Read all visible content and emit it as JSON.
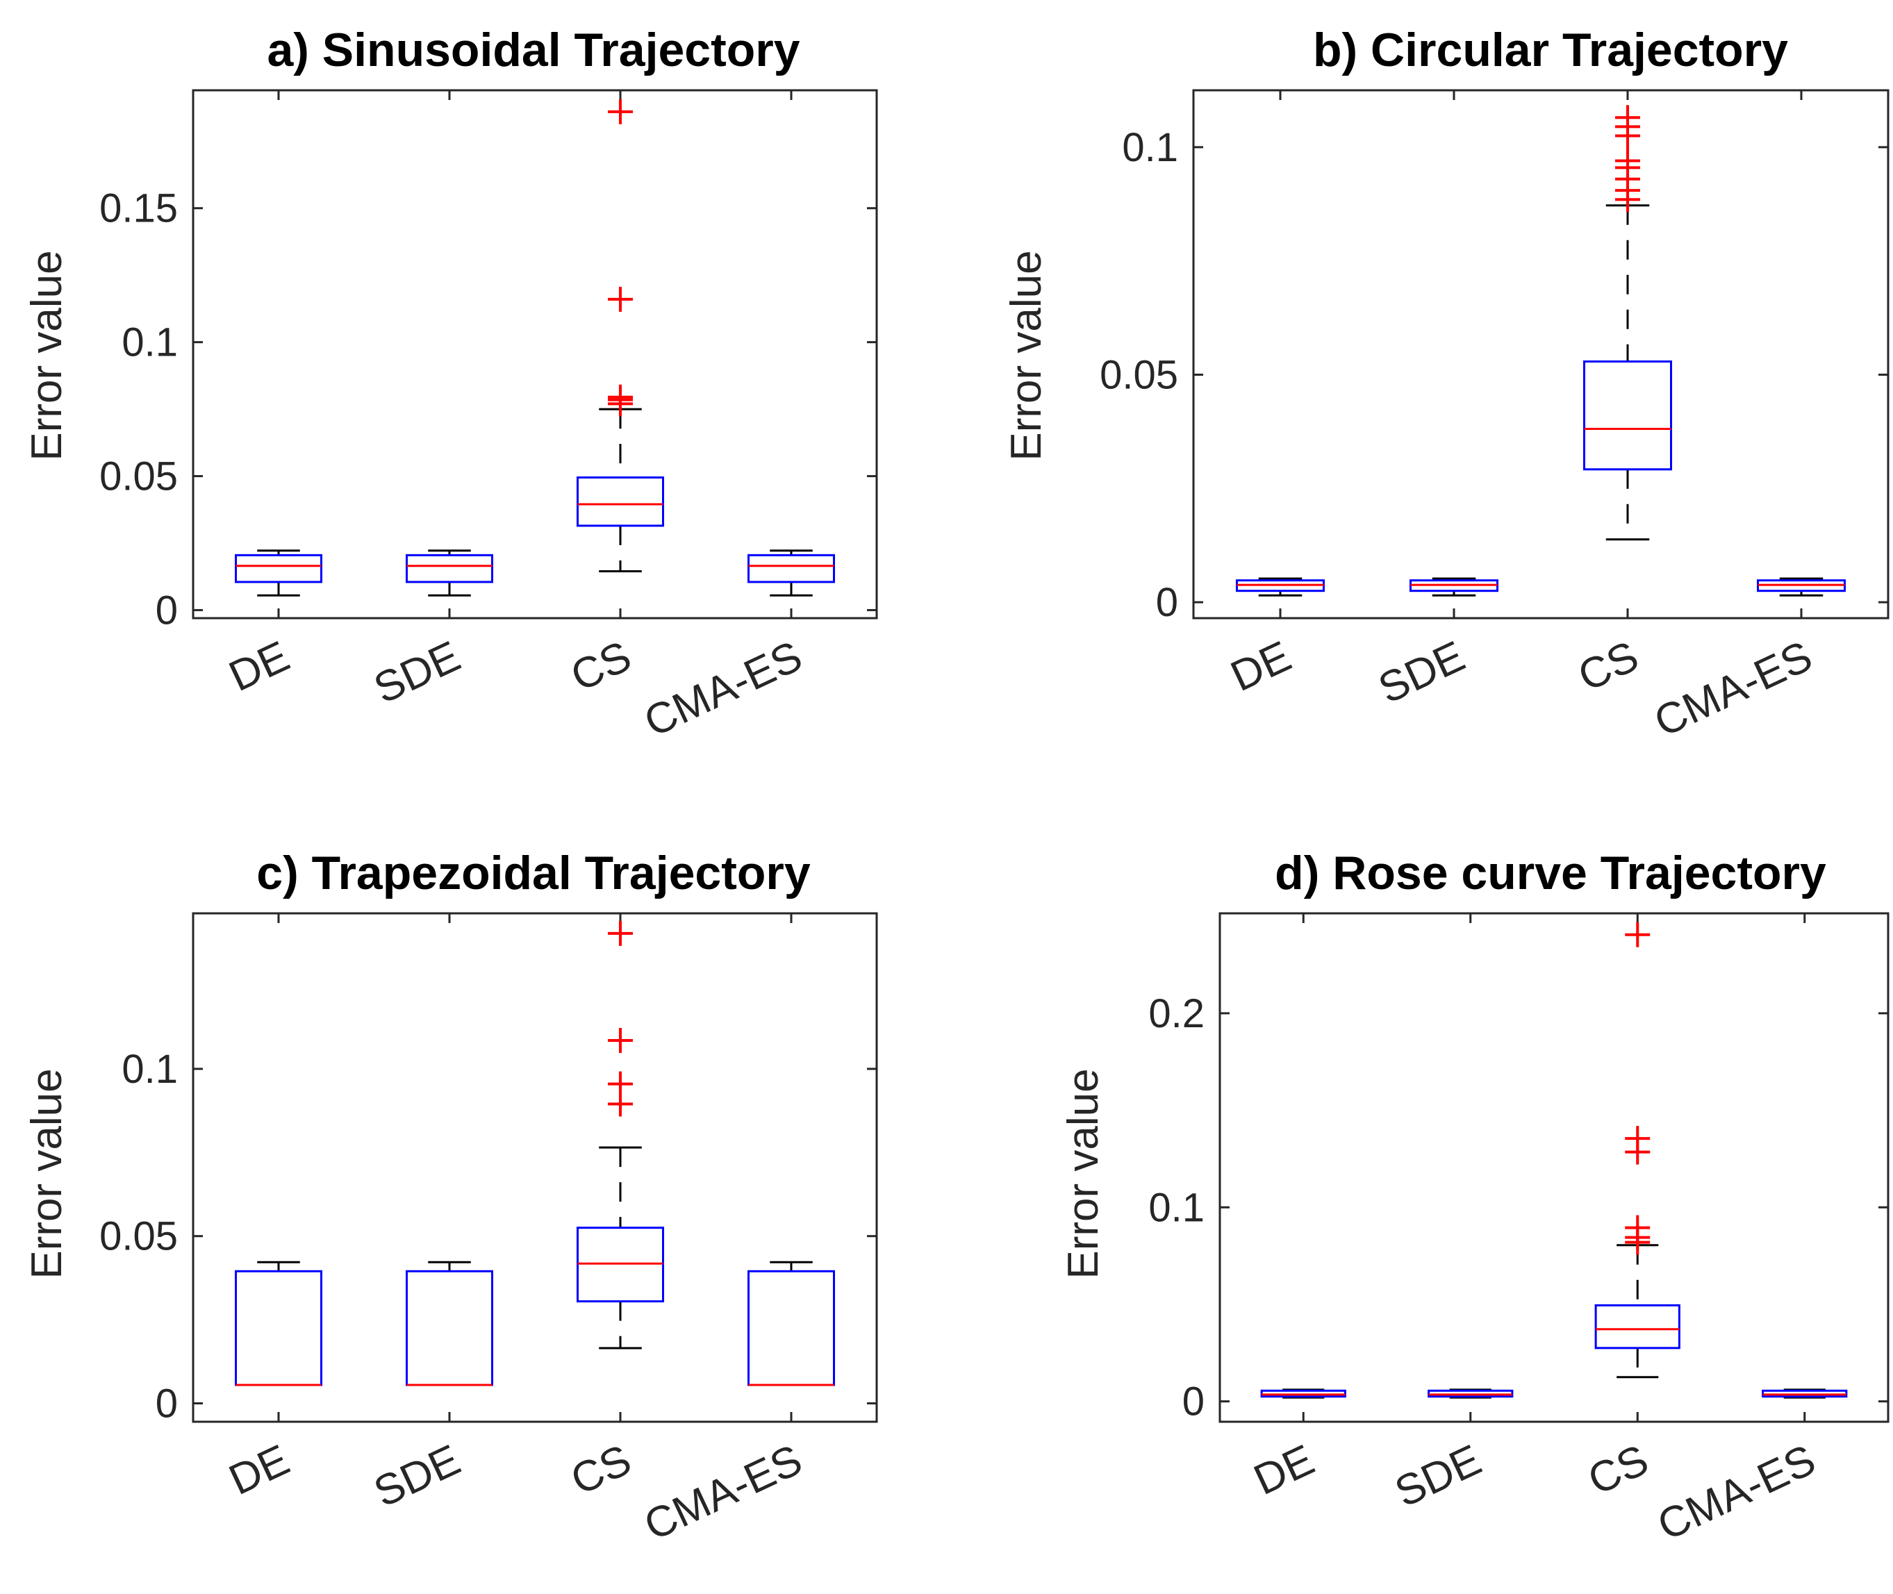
{
  "chart_data": [
    {
      "type": "box",
      "title": "a) Sinusoidal Trajectory",
      "ylabel": "Error value",
      "xlabel": "",
      "ylim": [
        -0.003,
        0.194
      ],
      "yticks": [
        0,
        0.05,
        0.1,
        0.15
      ],
      "ytick_labels": [
        "0",
        "0.05",
        "0.1",
        "0.15"
      ],
      "categories": [
        "DE",
        "SDE",
        "CS",
        "CMA-ES"
      ],
      "boxes": [
        {
          "whisker_low": 0.0055,
          "q1": 0.0105,
          "median": 0.0165,
          "q3": 0.0205,
          "whisker_high": 0.0222,
          "outliers": []
        },
        {
          "whisker_low": 0.0055,
          "q1": 0.0105,
          "median": 0.0165,
          "q3": 0.0205,
          "whisker_high": 0.0222,
          "outliers": []
        },
        {
          "whisker_low": 0.0145,
          "q1": 0.0315,
          "median": 0.0395,
          "q3": 0.0495,
          "whisker_high": 0.075,
          "outliers": [
            0.077,
            0.0785,
            0.0795,
            0.116,
            0.186
          ]
        },
        {
          "whisker_low": 0.0055,
          "q1": 0.0105,
          "median": 0.0165,
          "q3": 0.0205,
          "whisker_high": 0.0222,
          "outliers": []
        }
      ]
    },
    {
      "type": "box",
      "title": "b) Circular Trajectory",
      "ylabel": "Error value",
      "xlabel": "",
      "ylim": [
        -0.0035,
        0.1125
      ],
      "yticks": [
        0,
        0.05,
        0.1
      ],
      "ytick_labels": [
        "0",
        "0.05",
        "0.1"
      ],
      "categories": [
        "DE",
        "SDE",
        "CS",
        "CMA-ES"
      ],
      "boxes": [
        {
          "whisker_low": 0.0015,
          "q1": 0.0025,
          "median": 0.0038,
          "q3": 0.0048,
          "whisker_high": 0.0052,
          "outliers": []
        },
        {
          "whisker_low": 0.0015,
          "q1": 0.0025,
          "median": 0.0038,
          "q3": 0.0048,
          "whisker_high": 0.0052,
          "outliers": []
        },
        {
          "whisker_low": 0.0138,
          "q1": 0.0292,
          "median": 0.0381,
          "q3": 0.0529,
          "whisker_high": 0.0872,
          "outliers": [
            0.0885,
            0.0905,
            0.093,
            0.0955,
            0.097,
            0.1025,
            0.1045,
            0.1065
          ]
        },
        {
          "whisker_low": 0.0015,
          "q1": 0.0025,
          "median": 0.0038,
          "q3": 0.0048,
          "whisker_high": 0.0052,
          "outliers": []
        }
      ]
    },
    {
      "type": "box",
      "title": "c) Trapezoidal Trajectory",
      "ylabel": "Error value",
      "xlabel": "",
      "ylim": [
        -0.0055,
        0.1465
      ],
      "yticks": [
        0,
        0.05,
        0.1
      ],
      "ytick_labels": [
        "0",
        "0.05",
        "0.1"
      ],
      "categories": [
        "DE",
        "SDE",
        "CS",
        "CMA-ES"
      ],
      "boxes": [
        {
          "whisker_low": 0.0055,
          "q1": 0.0055,
          "median": 0.0055,
          "q3": 0.0395,
          "whisker_high": 0.0422,
          "outliers": []
        },
        {
          "whisker_low": 0.0055,
          "q1": 0.0055,
          "median": 0.0055,
          "q3": 0.0395,
          "whisker_high": 0.0422,
          "outliers": []
        },
        {
          "whisker_low": 0.0165,
          "q1": 0.0305,
          "median": 0.0418,
          "q3": 0.0525,
          "whisker_high": 0.0765,
          "outliers": [
            0.0895,
            0.0955,
            0.1085,
            0.1405
          ]
        },
        {
          "whisker_low": 0.0055,
          "q1": 0.0055,
          "median": 0.0055,
          "q3": 0.0395,
          "whisker_high": 0.0422,
          "outliers": []
        }
      ]
    },
    {
      "type": "box",
      "title": "d) Rose curve Trajectory",
      "ylabel": "Error value",
      "xlabel": "",
      "ylim": [
        -0.0105,
        0.2515
      ],
      "yticks": [
        0,
        0.1,
        0.2
      ],
      "ytick_labels": [
        "0",
        "0.1",
        "0.2"
      ],
      "categories": [
        "DE",
        "SDE",
        "CS",
        "CMA-ES"
      ],
      "boxes": [
        {
          "whisker_low": 0.002,
          "q1": 0.0025,
          "median": 0.0035,
          "q3": 0.0055,
          "whisker_high": 0.006,
          "outliers": []
        },
        {
          "whisker_low": 0.002,
          "q1": 0.0025,
          "median": 0.0035,
          "q3": 0.0055,
          "whisker_high": 0.006,
          "outliers": []
        },
        {
          "whisker_low": 0.0125,
          "q1": 0.0275,
          "median": 0.0372,
          "q3": 0.0495,
          "whisker_high": 0.0805,
          "outliers": [
            0.082,
            0.0845,
            0.0895,
            0.1285,
            0.1355,
            0.2405
          ]
        },
        {
          "whisker_low": 0.002,
          "q1": 0.0025,
          "median": 0.0035,
          "q3": 0.0055,
          "whisker_high": 0.006,
          "outliers": []
        }
      ]
    }
  ],
  "colors": {
    "box": "#0000ff",
    "median": "#ff0000",
    "outlier": "#ff0000",
    "whisker": "#000000",
    "axis": "#262626"
  }
}
